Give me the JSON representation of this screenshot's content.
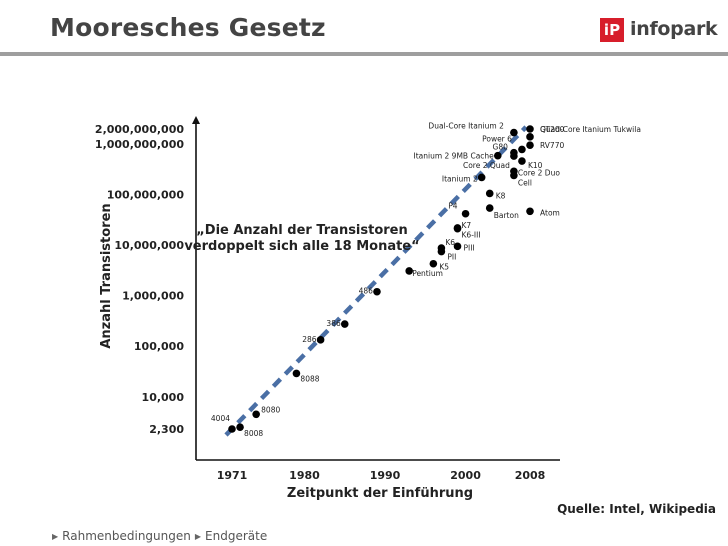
{
  "header": {
    "title": "Mooresches Gesetz"
  },
  "logo": {
    "mark": "iP",
    "text": "infopark",
    "brand_color": "#d71e2b"
  },
  "source": "Quelle: Intel, Wikipedia",
  "breadcrumb": [
    {
      "label": "Rahmenbedingungen"
    },
    {
      "label": "Endgeräte"
    }
  ],
  "chart_data": {
    "type": "scatter",
    "xlabel": "Zeitpunkt der Einführung",
    "ylabel": "Anzahl Transistoren",
    "y_scale": "log",
    "x_ticks": [
      "1971",
      "1980",
      "1990",
      "2000",
      "2008"
    ],
    "y_ticks": [
      {
        "label": "2,000,000,000",
        "value": 2000000000
      },
      {
        "label": "1,000,000,000",
        "value": 1000000000
      },
      {
        "label": "100,000,000",
        "value": 100000000
      },
      {
        "label": "10,000,000",
        "value": 10000000
      },
      {
        "label": "1,000,000",
        "value": 1000000
      },
      {
        "label": "100,000",
        "value": 100000
      },
      {
        "label": "10,000",
        "value": 10000
      },
      {
        "label": "2,300",
        "value": 2300
      }
    ],
    "annotation": "„Die Anzahl der Transistoren verdoppelt sich alle 18 Monate“",
    "trend_color": "#4a6fa5",
    "points": [
      {
        "name": "4004",
        "x": 1971,
        "y": 2300
      },
      {
        "name": "8008",
        "x": 1972,
        "y": 2500
      },
      {
        "name": "8080",
        "x": 1974,
        "y": 4500
      },
      {
        "name": "8088",
        "x": 1979,
        "y": 29000
      },
      {
        "name": "286",
        "x": 1982,
        "y": 134000
      },
      {
        "name": "386",
        "x": 1985,
        "y": 275000
      },
      {
        "name": "486",
        "x": 1989,
        "y": 1200000
      },
      {
        "name": "Pentium",
        "x": 1993,
        "y": 3100000
      },
      {
        "name": "K5",
        "x": 1996,
        "y": 4300000
      },
      {
        "name": "PII",
        "x": 1997,
        "y": 7500000
      },
      {
        "name": "K6",
        "x": 1997,
        "y": 8800000
      },
      {
        "name": "PIII",
        "x": 1999,
        "y": 9500000
      },
      {
        "name": "K6-III",
        "x": 1999,
        "y": 21300000
      },
      {
        "name": "K7",
        "x": 1999,
        "y": 22000000
      },
      {
        "name": "P4",
        "x": 2000,
        "y": 42000000
      },
      {
        "name": "Barton",
        "x": 2003,
        "y": 54300000
      },
      {
        "name": "Atom",
        "x": 2008,
        "y": 47000000
      },
      {
        "name": "K8",
        "x": 2003,
        "y": 105900000
      },
      {
        "name": "Itanium 2",
        "x": 2002,
        "y": 220000000
      },
      {
        "name": "Cell",
        "x": 2006,
        "y": 241000000
      },
      {
        "name": "Core 2 Duo",
        "x": 2006,
        "y": 291000000
      },
      {
        "name": "Itanium 2 9MB Cache",
        "x": 2004,
        "y": 592000000
      },
      {
        "name": "Core 2 Quad",
        "x": 2006,
        "y": 582000000
      },
      {
        "name": "K10",
        "x": 2007,
        "y": 463000000
      },
      {
        "name": "G80",
        "x": 2006,
        "y": 681000000
      },
      {
        "name": "Power 6",
        "x": 2007,
        "y": 789000000
      },
      {
        "name": "RV770",
        "x": 2008,
        "y": 956000000
      },
      {
        "name": "GT200",
        "x": 2008,
        "y": 1400000000
      },
      {
        "name": "Dual-Core Itanium 2",
        "x": 2006,
        "y": 1700000000
      },
      {
        "name": "Quad-Core Itanium Tukwila",
        "x": 2008,
        "y": 2000000000
      }
    ]
  }
}
